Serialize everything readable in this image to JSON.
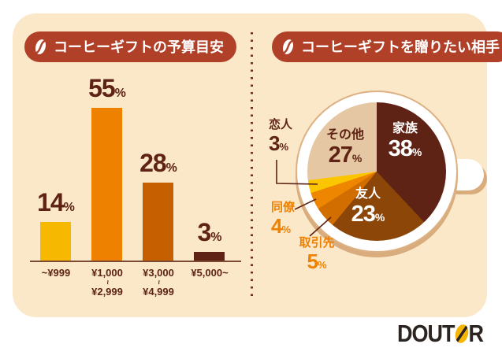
{
  "percent_sign": "%",
  "theme": {
    "page_background": "#FFFFFF",
    "card_background": "#FBE8C9",
    "badge_background": "#B04028",
    "badge_text": "#FFFFFF",
    "dark_brown_text": "#5E2314",
    "orange_label_text": "#EF8000",
    "axis_line": "#7C4A33",
    "divider_dots": "#6E3020",
    "cup_white": "#FFFFFF",
    "cup_outline": "#DDB183",
    "cup_shadow": "#D8AC7D"
  },
  "brand": {
    "logo_text": "DOUTOR",
    "logo_black": "#2B2420",
    "logo_yellow": "#F5B500",
    "bean_letter_index": 4
  },
  "chart_data": [
    {
      "type": "bar",
      "title": "コーヒーギフトの予算目安",
      "categories": [
        "~¥999",
        "¥1,000~¥2,999",
        "¥3,000~¥4,999",
        "¥5,000~"
      ],
      "category_lines": [
        [
          "~¥999"
        ],
        [
          "¥1,000",
          "~",
          "¥2,999"
        ],
        [
          "¥3,000",
          "~",
          "¥4,999"
        ],
        [
          "¥5,000~"
        ]
      ],
      "values": [
        14,
        55,
        28,
        3
      ],
      "unit": "%",
      "bar_colors": [
        "#F6B800",
        "#EE8200",
        "#C55F00",
        "#5E2314"
      ],
      "value_label_color": "#5E2314",
      "ylim": [
        0,
        60
      ],
      "grid": false,
      "legend": false
    },
    {
      "type": "pie",
      "title": "コーヒーギフトを贈りたい相手",
      "start_angle_deg": 0,
      "direction": "clockwise",
      "slices": [
        {
          "label": "家族",
          "value": 38,
          "color": "#5E2314",
          "label_placement": "inside",
          "text_color": "#FFFFFF"
        },
        {
          "label": "友人",
          "value": 23,
          "color": "#8C4708",
          "label_placement": "inside",
          "text_color": "#FFFFFF"
        },
        {
          "label": "取引先",
          "value": 5,
          "color": "#D26E00",
          "label_placement": "outside",
          "text_color": "#EF8000"
        },
        {
          "label": "同僚",
          "value": 4,
          "color": "#EF8600",
          "label_placement": "outside",
          "text_color": "#EF8000"
        },
        {
          "label": "恋人",
          "value": 3,
          "color": "#FBC600",
          "label_placement": "outside",
          "text_color": "#5E2314"
        },
        {
          "label": "その他",
          "value": 27,
          "color": "#E5C8A3",
          "label_placement": "inside",
          "text_color": "#5E2314"
        }
      ]
    }
  ]
}
